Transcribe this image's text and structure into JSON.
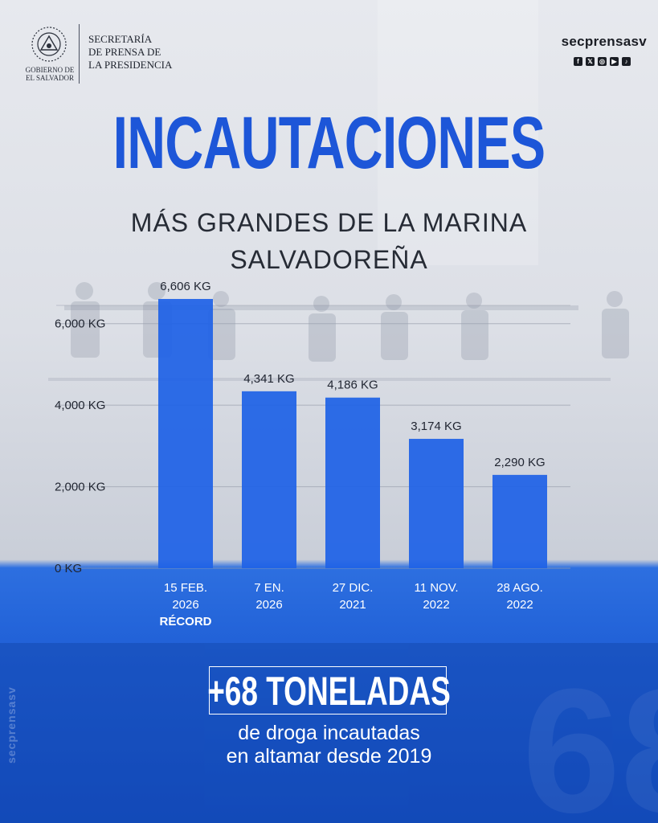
{
  "header": {
    "gov_label_line1": "GOBIERNO DE",
    "gov_label_line2": "EL SALVADOR",
    "secretaria_line1": "SECRETARÍA",
    "secretaria_line2": "DE PRENSA DE",
    "secretaria_line3": "LA PRESIDENCIA",
    "handle": "secprensasv",
    "social_icons": [
      "facebook-icon",
      "x-icon",
      "instagram-icon",
      "youtube-icon",
      "tiktok-icon"
    ]
  },
  "title": "INCAUTACIONES",
  "subtitle_line1": "MÁS GRANDES DE LA MARINA",
  "subtitle_line2": "SALVADOREÑA",
  "chart_data": {
    "type": "bar",
    "categories": [
      [
        "15 FEB.",
        "2026",
        "RÉCORD"
      ],
      [
        "7 EN.",
        "2026"
      ],
      [
        "27 DIC.",
        "2021"
      ],
      [
        "11 NOV.",
        "2022"
      ],
      [
        "28 AGO.",
        "2022"
      ]
    ],
    "values": [
      6606,
      4341,
      4186,
      3174,
      2290
    ],
    "data_labels": [
      "6,606 KG",
      "4,341 KG",
      "4,186 KG",
      "3,174 KG",
      "2,290 KG"
    ],
    "y_ticks": [
      0,
      2000,
      4000,
      6000
    ],
    "y_tick_labels": [
      "0 KG",
      "2,000 KG",
      "4,000 KG",
      "6,000 KG"
    ],
    "ylim": [
      0,
      7000
    ],
    "grid": true,
    "bar_color": "#1f62e6"
  },
  "callout": {
    "big": "+68 TONELADAS",
    "sub_line1": "de droga incautadas",
    "sub_line2": "en altamar desde 2019"
  },
  "side_handle": "secprensasv",
  "colors": {
    "title": "#1d56d8",
    "bar": "#1f62e6",
    "bottom_panel": "#1a5ad4"
  }
}
